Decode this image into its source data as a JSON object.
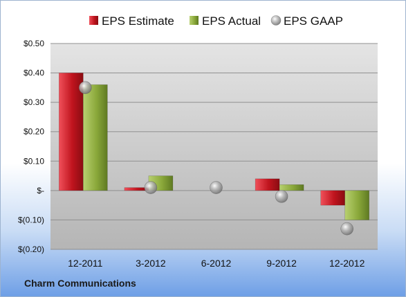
{
  "chart_data": {
    "type": "bar",
    "categories": [
      "12-2011",
      "3-2012",
      "6-2012",
      "9-2012",
      "12-2012"
    ],
    "series": [
      {
        "name": "EPS Estimate",
        "kind": "bar",
        "color": "#c0141e",
        "values": [
          0.4,
          0.01,
          0.0,
          0.04,
          -0.05
        ]
      },
      {
        "name": "EPS Actual",
        "kind": "bar",
        "color": "#8aa83a",
        "values": [
          0.36,
          0.05,
          0.0,
          0.02,
          -0.1
        ]
      },
      {
        "name": "EPS GAAP",
        "kind": "marker",
        "color": "#9a9a9a",
        "values": [
          0.35,
          0.01,
          0.01,
          -0.02,
          -0.13
        ]
      }
    ],
    "y_ticks": [
      {
        "value": 0.5,
        "label": "$0.50"
      },
      {
        "value": 0.4,
        "label": "$0.40"
      },
      {
        "value": 0.3,
        "label": "$0.30"
      },
      {
        "value": 0.2,
        "label": "$0.20"
      },
      {
        "value": 0.1,
        "label": "$0.10"
      },
      {
        "value": 0.0,
        "label": "$-"
      },
      {
        "value": -0.1,
        "label": "$(0.10)"
      },
      {
        "value": -0.2,
        "label": "$(0.20)"
      }
    ],
    "ylim": [
      -0.2,
      0.5
    ],
    "grid": true,
    "legend_position": "top"
  },
  "footer": {
    "company": "Charm Communications"
  }
}
